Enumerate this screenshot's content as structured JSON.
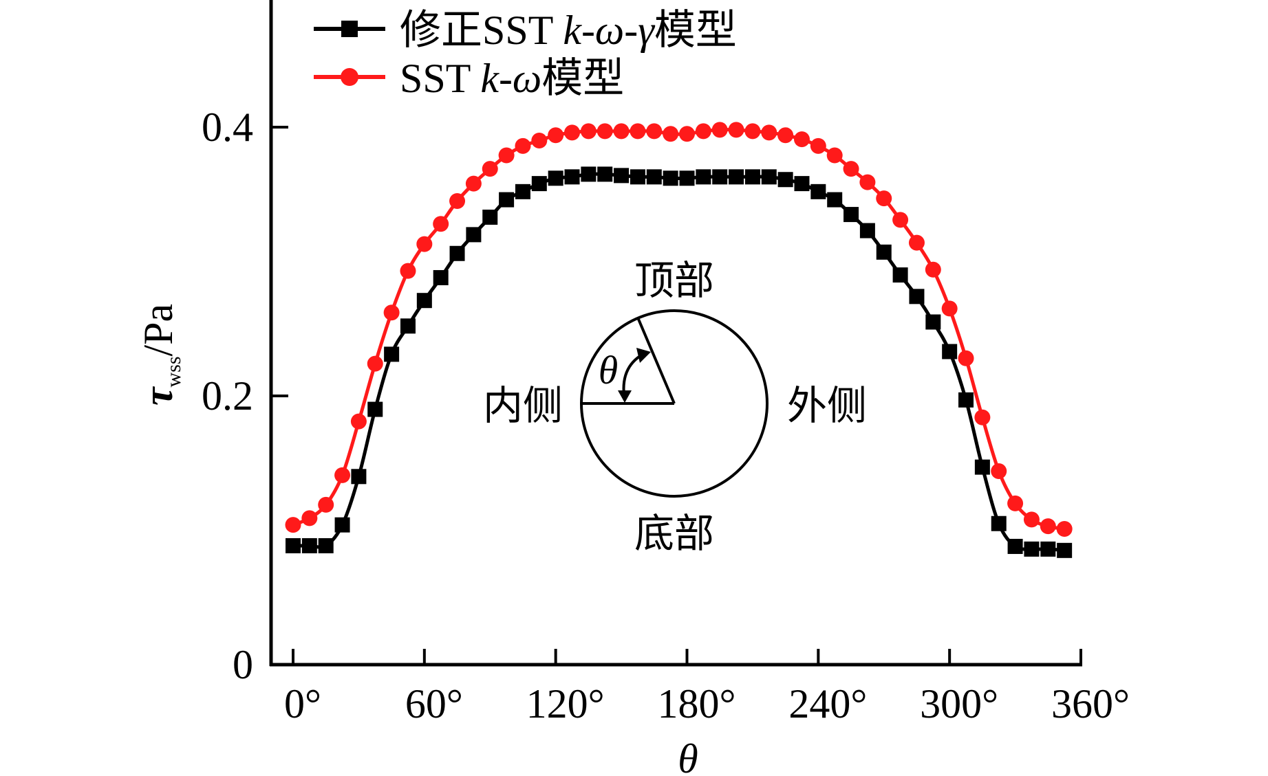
{
  "chart_data": {
    "type": "line",
    "title": "",
    "xlabel": "θ",
    "ylabel": {
      "main": "τ",
      "subscript": "wss",
      "unit": "/Pa"
    },
    "xlim": [
      0,
      360
    ],
    "ylim": [
      0,
      0.4
    ],
    "grid": false,
    "x_ticks": [
      0,
      60,
      120,
      180,
      240,
      300,
      360
    ],
    "x_tick_labels": [
      "0°",
      "60°",
      "120°",
      "180°",
      "240°",
      "300°",
      "360°"
    ],
    "y_ticks": [
      0,
      0.2,
      0.4
    ],
    "y_tick_labels": [
      "0",
      "0.2",
      "0.4"
    ],
    "legend_position": "top-left",
    "x": [
      0,
      7.5,
      15,
      22.5,
      30,
      37.5,
      45,
      52.5,
      60,
      67.5,
      75,
      82.5,
      90,
      97.5,
      105,
      112.5,
      120,
      127.5,
      135,
      142.5,
      150,
      157.5,
      165,
      172.5,
      180,
      187.5,
      195,
      202.5,
      210,
      217.5,
      225,
      232.5,
      240,
      247.5,
      255,
      262.5,
      270,
      277.5,
      285,
      292.5,
      300,
      307.5,
      315,
      322.5,
      330,
      337.5,
      345,
      352.5
    ],
    "series": [
      {
        "name": "修正SST k-ω-γ模型",
        "legend": {
          "prefix": "修正SST ",
          "k": "k",
          "sym": "-ω-γ",
          "suffix": "模型"
        },
        "color": "#000000",
        "marker": "square",
        "values": [
          0.0885,
          0.0885,
          0.0885,
          0.104,
          0.14,
          0.19,
          0.231,
          0.252,
          0.271,
          0.288,
          0.306,
          0.32,
          0.333,
          0.346,
          0.352,
          0.358,
          0.362,
          0.363,
          0.365,
          0.365,
          0.364,
          0.363,
          0.363,
          0.362,
          0.362,
          0.363,
          0.363,
          0.363,
          0.363,
          0.363,
          0.361,
          0.358,
          0.352,
          0.346,
          0.335,
          0.323,
          0.307,
          0.29,
          0.274,
          0.255,
          0.233,
          0.197,
          0.147,
          0.105,
          0.088,
          0.086,
          0.086,
          0.085
        ]
      },
      {
        "name": "SST k-ω模型",
        "legend": {
          "prefix": "SST ",
          "k": "k",
          "sym": "-ω",
          "suffix": "模型"
        },
        "color": "#ff1a1a",
        "marker": "circle",
        "values": [
          0.104,
          0.109,
          0.119,
          0.141,
          0.181,
          0.224,
          0.262,
          0.293,
          0.313,
          0.328,
          0.345,
          0.358,
          0.369,
          0.379,
          0.386,
          0.39,
          0.394,
          0.396,
          0.397,
          0.397,
          0.397,
          0.397,
          0.397,
          0.395,
          0.395,
          0.397,
          0.398,
          0.398,
          0.397,
          0.396,
          0.394,
          0.391,
          0.386,
          0.379,
          0.369,
          0.359,
          0.347,
          0.331,
          0.314,
          0.294,
          0.265,
          0.228,
          0.184,
          0.144,
          0.12,
          0.108,
          0.103,
          0.101
        ]
      }
    ],
    "annotations": {
      "inset_diagram": "pipe cross-section with angle θ measured from inner side",
      "angle_label": "θ",
      "top": "顶部",
      "bottom": "底部",
      "inner": "内侧",
      "outer": "外侧"
    }
  }
}
